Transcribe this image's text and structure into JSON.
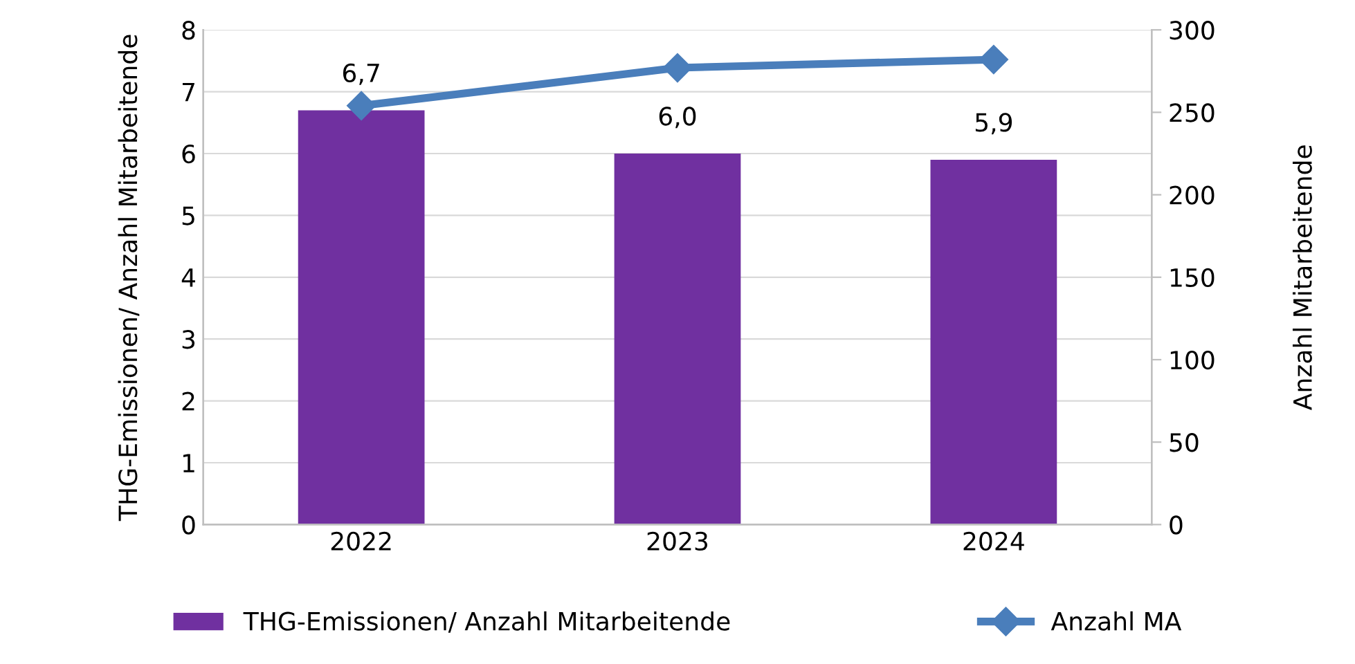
{
  "chart_data": {
    "type": "bar",
    "categories": [
      "2022",
      "2023",
      "2024"
    ],
    "ylabel": "THG-Emissionen/ Anzahl Mitarbeitende",
    "y2label": "Anzahl Mitarbeitende",
    "series": [
      {
        "name": "THG-Emissionen/ Anzahl Mitarbeitende",
        "color": "#7030a0",
        "values": [
          6.7,
          6.0,
          5.9
        ],
        "value_labels": [
          "6,7",
          "6,0",
          "5,9"
        ]
      },
      {
        "name": "Anzahl MA",
        "type": "line",
        "axis": "y2",
        "color": "#4a7ebb",
        "marker": "diamond",
        "values": [
          254,
          277,
          282
        ]
      }
    ],
    "ylim": [
      0,
      8
    ],
    "yticks": [
      0,
      1,
      2,
      3,
      4,
      5,
      6,
      7,
      8
    ],
    "y2lim": [
      0,
      300
    ],
    "y2ticks": [
      0,
      50,
      100,
      150,
      200,
      250,
      300
    ],
    "grid": "y",
    "legend": "bottom"
  }
}
